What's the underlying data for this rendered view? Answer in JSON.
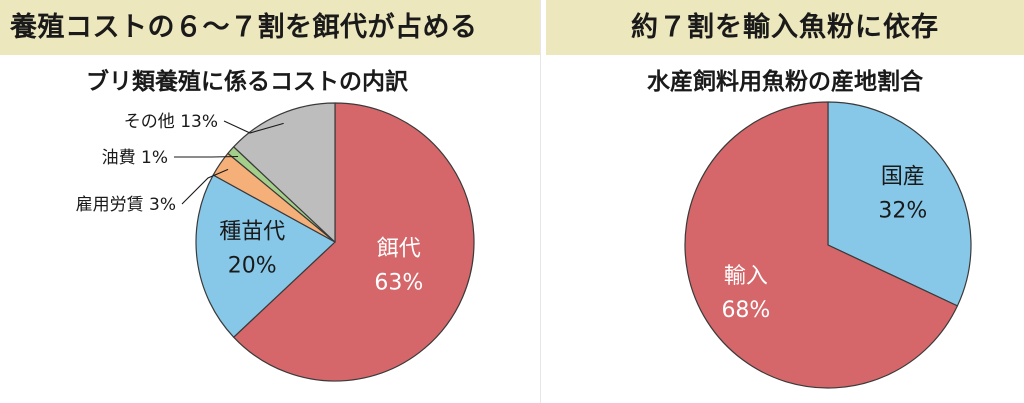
{
  "left": {
    "banner": "養殖コストの６～７割を餌代が占める",
    "chart_title": "ブリ類養殖に係るコストの内訳"
  },
  "right": {
    "banner": "約７割を輸入魚粉に依存",
    "chart_title": "水産飼料用魚粉の産地割合"
  },
  "chart_data": [
    {
      "type": "pie",
      "title": "ブリ類養殖に係るコストの内訳",
      "slices": [
        {
          "label": "餌代",
          "value": 63,
          "value_text": "63%",
          "color": "#d5676a",
          "label_style": "inside",
          "text_color": "#ffffff"
        },
        {
          "label": "種苗代",
          "value": 20,
          "value_text": "20%",
          "color": "#87c8e8",
          "label_style": "inside",
          "text_color": "#1a1a1a"
        },
        {
          "label": "雇用労賃",
          "value": 3,
          "value_text": "3%",
          "color": "#f5b07a",
          "label_style": "leader"
        },
        {
          "label": "油費",
          "value": 1,
          "value_text": "1%",
          "color": "#a4cf8a",
          "label_style": "leader"
        },
        {
          "label": "その他",
          "value": 13,
          "value_text": "13%",
          "color": "#bdbdbd",
          "label_style": "leader"
        }
      ]
    },
    {
      "type": "pie",
      "title": "水産飼料用魚粉の産地割合",
      "slices": [
        {
          "label": "国産",
          "value": 32,
          "value_text": "32%",
          "color": "#87c8e8",
          "label_style": "inside",
          "text_color": "#1a1a1a"
        },
        {
          "label": "輸入",
          "value": 68,
          "value_text": "68%",
          "color": "#d5676a",
          "label_style": "inside",
          "text_color": "#ffffff"
        }
      ]
    }
  ]
}
